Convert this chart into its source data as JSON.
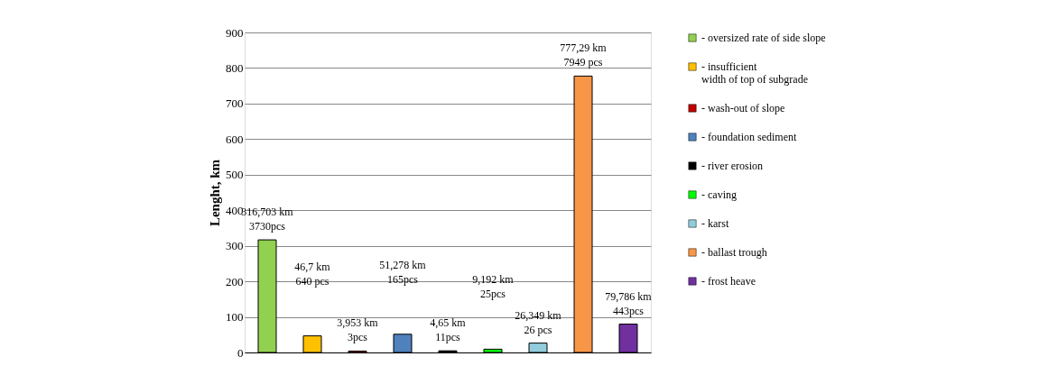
{
  "chart_data": {
    "type": "bar",
    "ylabel": "Lenght, km",
    "categories": [
      null,
      null,
      null,
      null,
      null,
      null,
      null,
      null,
      null
    ],
    "series": [
      {
        "name": "- oversized rate of side slope",
        "color": "#92d050",
        "values": [
          316.703,
          null,
          null,
          null,
          null,
          null,
          null,
          null,
          null
        ]
      },
      {
        "name": "- insufficient\nwidth of top of subgrade",
        "color": "#ffc000",
        "values": [
          null,
          46.7,
          null,
          null,
          null,
          null,
          null,
          null,
          null
        ]
      },
      {
        "name": "- wash-out of slope",
        "color": "#c00000",
        "values": [
          null,
          null,
          3.953,
          null,
          null,
          null,
          null,
          null,
          null
        ]
      },
      {
        "name": "- foundation sediment",
        "color": "#4f81bd",
        "values": [
          null,
          null,
          null,
          51.278,
          null,
          null,
          null,
          null,
          null
        ]
      },
      {
        "name": "- river erosion",
        "color": "#000000",
        "values": [
          null,
          null,
          null,
          null,
          4.65,
          null,
          null,
          null,
          null
        ]
      },
      {
        "name": "- caving",
        "color": "#00ff00",
        "values": [
          null,
          null,
          null,
          null,
          null,
          9.192,
          null,
          null,
          null
        ]
      },
      {
        "name": "- karst",
        "color": "#93cddd",
        "values": [
          null,
          null,
          null,
          null,
          null,
          null,
          26.349,
          null,
          null
        ]
      },
      {
        "name": "- ballast trough",
        "color": "#f79646",
        "values": [
          null,
          null,
          null,
          null,
          null,
          null,
          null,
          777.29,
          null
        ]
      },
      {
        "name": "- frost heave",
        "color": "#7030a0",
        "values": [
          null,
          null,
          null,
          null,
          null,
          null,
          null,
          null,
          79.786
        ]
      }
    ],
    "value_labels": [
      "316,703 km\n3730pcs",
      "46,7 km\n640 pcs",
      "3,953 km\n3pcs",
      "51,278 km\n165pcs",
      "4,65 km\n11pcs",
      "9,192 km\n25pcs",
      "26,349 km\n26 pcs",
      "777,29 km\n7949 pcs",
      "79,786 km\n443pcs"
    ],
    "ylim": [
      0,
      900
    ],
    "yticks": [
      0,
      100,
      200,
      300,
      400,
      500,
      600,
      700,
      800,
      900
    ],
    "grid": "y",
    "legend": "right"
  }
}
